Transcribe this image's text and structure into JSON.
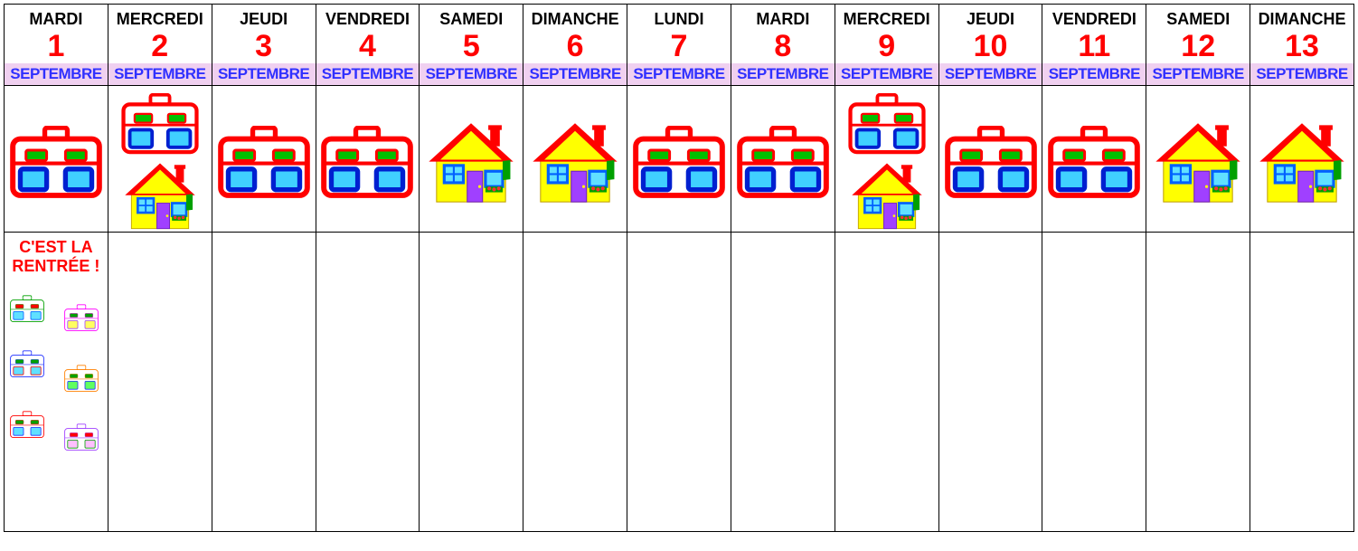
{
  "month_label": "SEPTEMBRE",
  "month_bg": "#f0d0f0",
  "month_color": "#3030ff",
  "day_num_color": "#ff0000",
  "days": [
    {
      "name": "MARDI",
      "num": "1",
      "icon": "bag"
    },
    {
      "name": "MERCREDI",
      "num": "2",
      "icon": "both"
    },
    {
      "name": "JEUDI",
      "num": "3",
      "icon": "bag"
    },
    {
      "name": "VENDREDI",
      "num": "4",
      "icon": "bag"
    },
    {
      "name": "SAMEDI",
      "num": "5",
      "icon": "house"
    },
    {
      "name": "DIMANCHE",
      "num": "6",
      "icon": "house"
    },
    {
      "name": "LUNDI",
      "num": "7",
      "icon": "bag"
    },
    {
      "name": "MARDI",
      "num": "8",
      "icon": "bag"
    },
    {
      "name": "MERCREDI",
      "num": "9",
      "icon": "both"
    },
    {
      "name": "JEUDI",
      "num": "10",
      "icon": "bag"
    },
    {
      "name": "VENDREDI",
      "num": "11",
      "icon": "bag"
    },
    {
      "name": "SAMEDI",
      "num": "12",
      "icon": "house"
    },
    {
      "name": "DIMANCHE",
      "num": "13",
      "icon": "house"
    }
  ],
  "rentree": {
    "line1": "C'EST LA",
    "line2": "RENTRÉE !",
    "color": "#ff0000"
  },
  "bag_main": {
    "outline": "#ff0000",
    "clip1": "#00c000",
    "clip2": "#00c000",
    "pocket1": "#0020d0",
    "pocket2": "#0020d0",
    "fill": "#ffffff",
    "accent": "#40d0ff"
  },
  "house": {
    "roof": "#ff0000",
    "wall": "#ffff00",
    "window_frame": "#0060ff",
    "window_fill": "#60e0ff",
    "door": "#a040ff",
    "chimney": "#ff0000",
    "shutter": "#00a000",
    "flower": "#ff3030"
  },
  "mini_bags": [
    {
      "outline": "#00a000",
      "clip": "#ff0000",
      "pocket": "#0060ff",
      "accent": "#60e0ff"
    },
    {
      "outline": "#ff00ff",
      "clip": "#00a000",
      "pocket": "#a040ff",
      "accent": "#ffff60"
    },
    {
      "outline": "#2030ff",
      "clip": "#00a000",
      "pocket": "#ff0000",
      "accent": "#60e0ff"
    },
    {
      "outline": "#ff8000",
      "clip": "#00a000",
      "pocket": "#2030ff",
      "accent": "#60ff60"
    },
    {
      "outline": "#ff0000",
      "clip": "#00a000",
      "pocket": "#2030ff",
      "accent": "#60e0ff"
    },
    {
      "outline": "#a040ff",
      "clip": "#ff0000",
      "pocket": "#00a000",
      "accent": "#ffc0ff"
    }
  ]
}
